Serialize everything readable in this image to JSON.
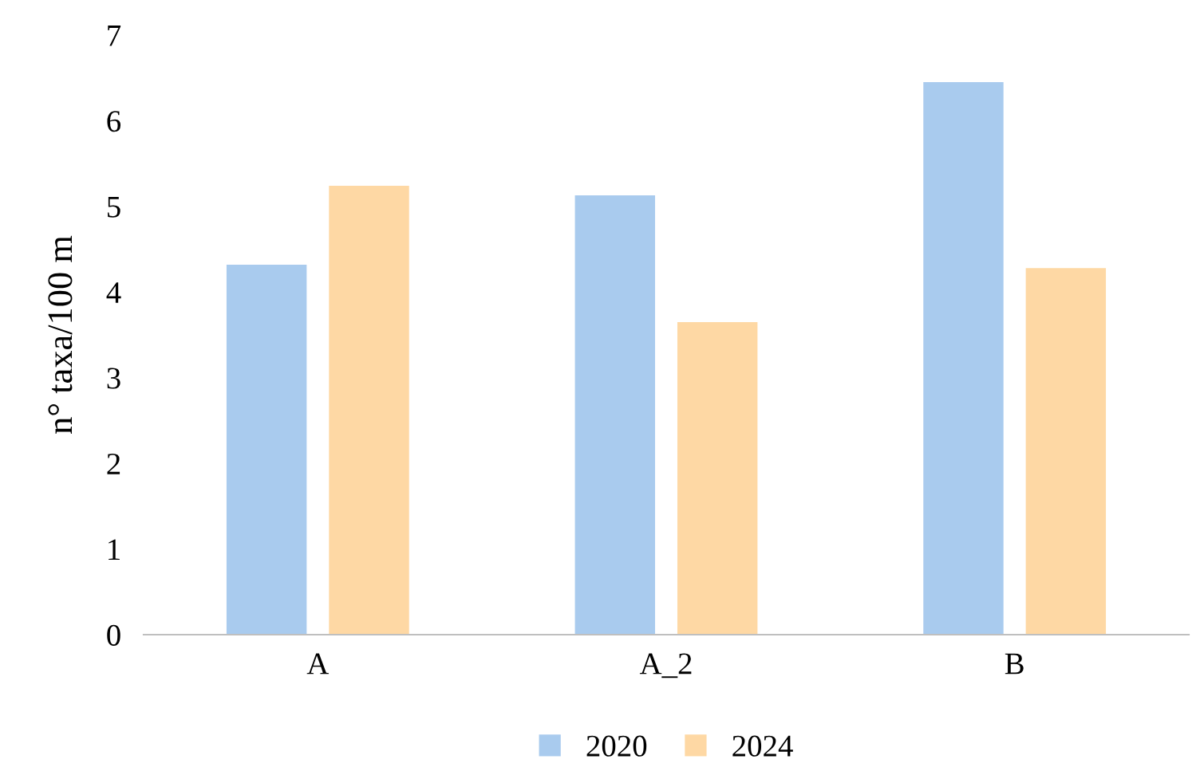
{
  "chart_data": {
    "type": "bar",
    "ylabel": "n° taxa/100 m",
    "categories": [
      "A",
      "A_2",
      "B"
    ],
    "series": [
      {
        "name": "2020",
        "color": "#a9cbee",
        "values": [
          4.32,
          5.13,
          6.45
        ]
      },
      {
        "name": "2024",
        "color": "#fed8a4",
        "values": [
          5.24,
          3.65,
          4.28
        ]
      }
    ],
    "ylim": [
      0,
      7
    ],
    "yticks": [
      0,
      1,
      2,
      3,
      4,
      5,
      6,
      7
    ],
    "grid": false,
    "legend": "bottom"
  }
}
